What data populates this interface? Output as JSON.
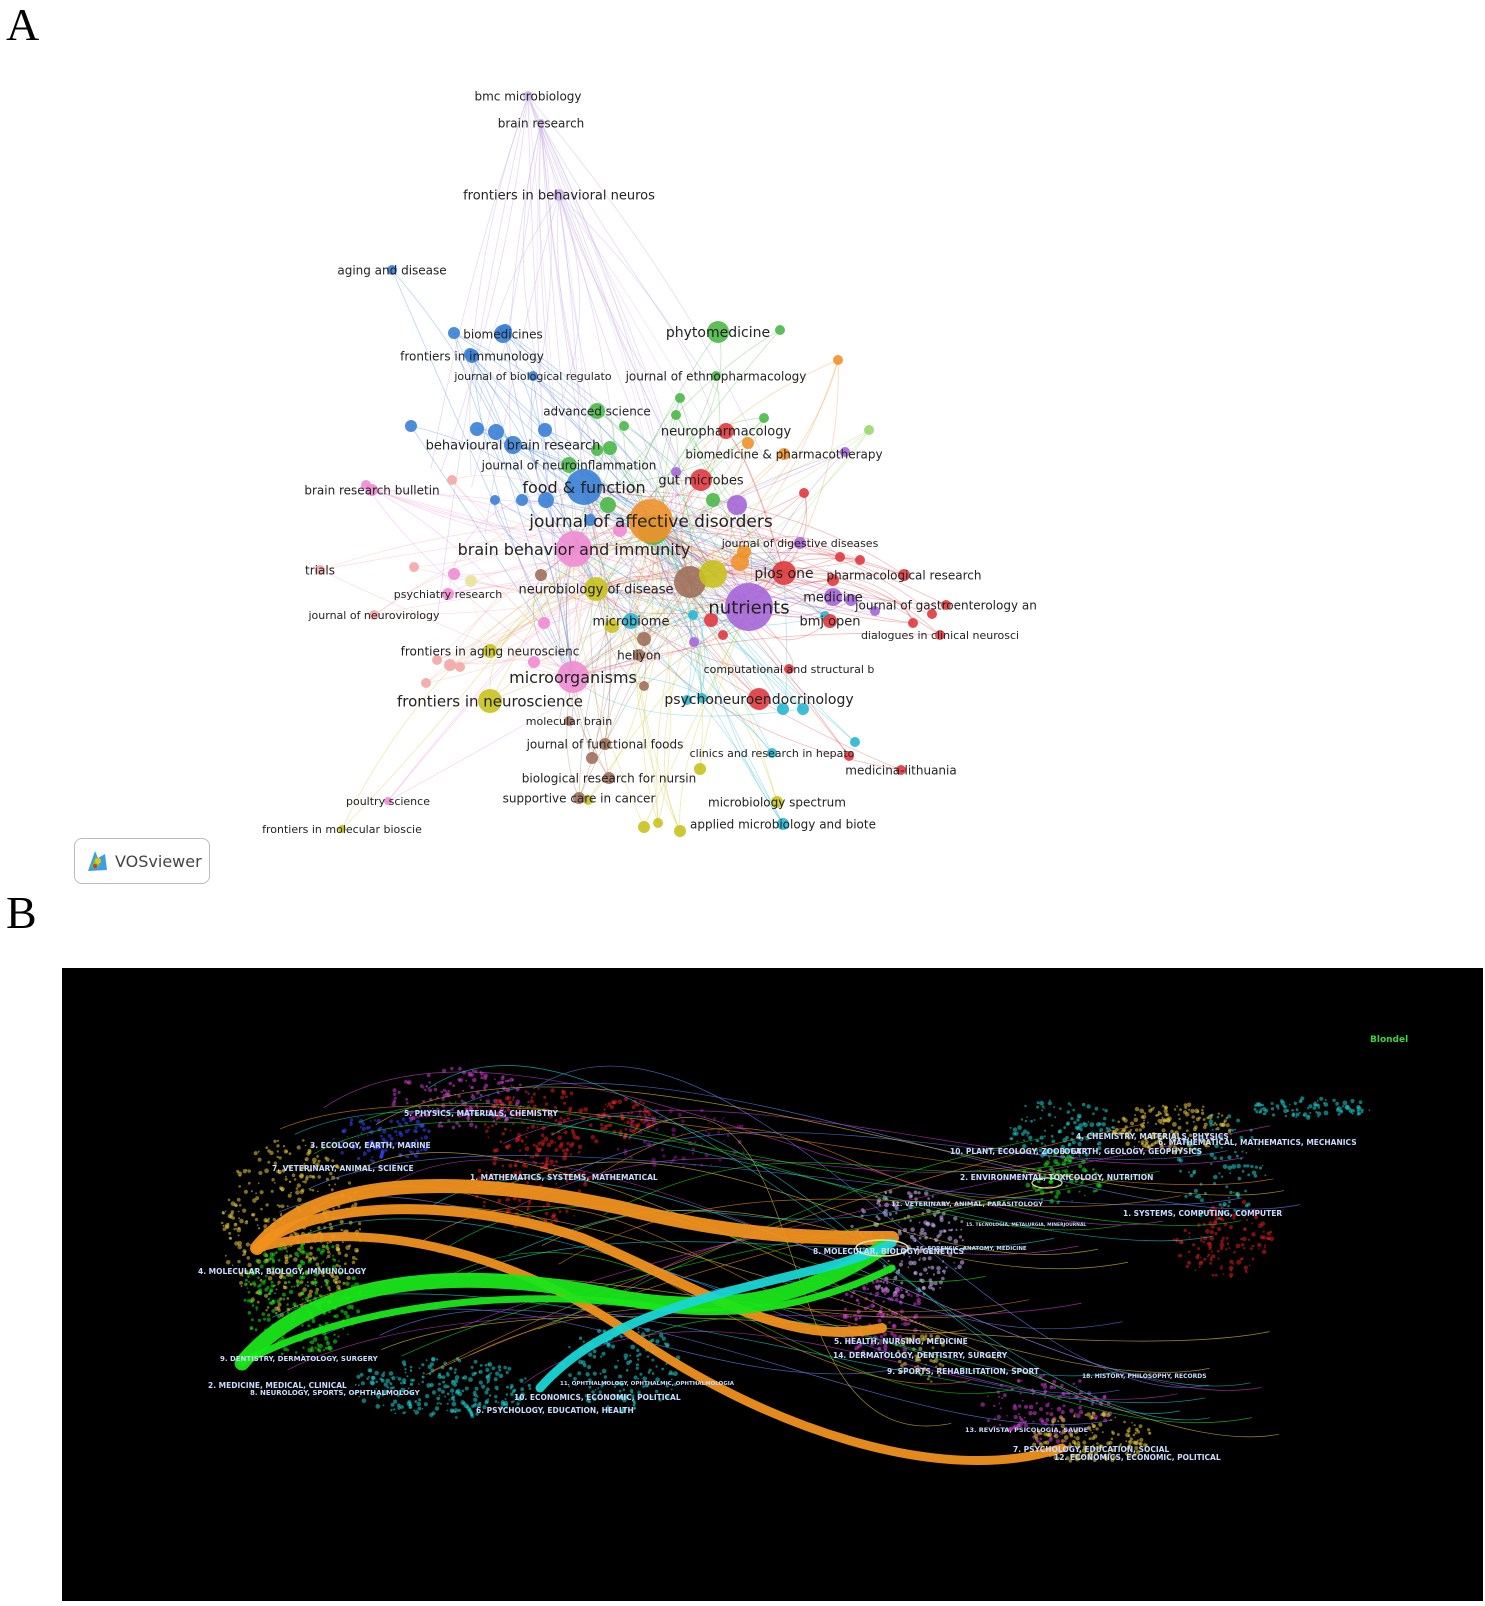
{
  "panels": {
    "a": "A",
    "b": "B"
  },
  "panel_a": {
    "badge": {
      "text": "VOSviewer",
      "icon": "vosviewer-logo-icon"
    },
    "clusters": {
      "red": "#e03a3e",
      "green": "#4cb848",
      "blue": "#3a7fd5",
      "yellow": "#c8c21e",
      "purple": "#a566d8",
      "cyan": "#29b6d2",
      "orange": "#f0912a",
      "brown": "#a0705a",
      "pink": "#f08bd3",
      "lightpink": "#f4a6a6",
      "lightgreen": "#9bd86b",
      "lavender": "#cdb6e8"
    },
    "labels": [
      "bmc microbiology",
      "brain research",
      "frontiers in behavioral neuros",
      "aging and disease",
      "biomedicines",
      "phytomedicine",
      "frontiers in immunology",
      "journal of biological regulato",
      "journal of ethnopharmacology",
      "advanced science",
      "neuropharmacology",
      "behavioural brain research",
      "biomedicine & pharmacotherapy",
      "journal of neuroinflammation",
      "brain research bulletin",
      "gut microbes",
      "food & function",
      "journal of affective disorders",
      "journal of digestive diseases",
      "brain behavior and immunity",
      "trials",
      "plos one",
      "pharmacological research",
      "neurobiology of disease",
      "psychiatry research",
      "medicine",
      "nutrients",
      "journal of gastroenterology an",
      "journal of neurovirology",
      "bmj open",
      "microbiome",
      "dialogues in clinical neurosci",
      "frontiers in aging neuroscienc",
      "heliyon",
      "computational and structural b",
      "microorganisms",
      "frontiers in neuroscience",
      "psychoneuroendocrinology",
      "molecular brain",
      "journal of functional foods",
      "clinics and research in hepato",
      "biological research for nursin",
      "medicina-lithuania",
      "supportive care in cancer",
      "poultry science",
      "microbiology spectrum",
      "applied microbiology and biote",
      "frontiers in molecular bioscie"
    ]
  },
  "panel_b": {
    "corner_label": "Blondel",
    "colors": {
      "orange": "#f0911e",
      "green": "#19e619",
      "cyan": "#19d6d6",
      "yellow": "#e8c83a",
      "magenta": "#d23ad2",
      "red": "#e21e1e",
      "label": "#c8dcff"
    },
    "left_labels": [
      "5. PHYSICS, MATERIALS, CHEMISTRY",
      "3. ECOLOGY, EARTH, MARINE",
      "7. VETERINARY, ANIMAL, SCIENCE",
      "1. MATHEMATICS, SYSTEMS, MATHEMATICAL",
      "4. MOLECULAR, BIOLOGY, IMMUNOLOGY",
      "9. DENTISTRY, DERMATOLOGY, SURGERY",
      "2. MEDICINE, MEDICAL, CLINICAL",
      "8. NEUROLOGY, SPORTS, OPHTHALMOLOGY",
      "10. ECONOMICS, ECONOMIC, POLITICAL",
      "6. PSYCHOLOGY, EDUCATION, HEALTH",
      "11. OPHTHALMOLOGY, OPHTHALMIC, OPHTHALMOLOGIA"
    ],
    "right_labels": [
      "4. CHEMISTRY, MATERIALS, PHYSICS",
      "6. MATHEMATICAL, MATHEMATICS, MECHANICS",
      "10. PLANT, ECOLOGY, ZOOLOGY",
      "3. EARTH, GEOLOGY, GEOPHYSICS",
      "2. ENVIRONMENTAL, TOXICOLOGY, NUTRITION",
      "11. VETERINARY, ANIMAL, PARASITOLOGY",
      "1. SYSTEMS, COMPUTING, COMPUTER",
      "8. MOLECULAR, BIOLOGY, GENETICS",
      "16. FORENSIC, ANATOMY, MEDICINE",
      "15. TECNOLOGIA, METALURGIA, MINERJOURNAL",
      "5. HEALTH, NURSING, MEDICINE",
      "14. DERMATOLOGY, DENTISTRY, SURGERY",
      "9. SPORTS, REHABILITATION, SPORT",
      "18. HISTORY, PHILOSOPHY, RECORDS",
      "13. REVISTA, PSICOLOGIA, SAUDE",
      "7. PSYCHOLOGY, EDUCATION, SOCIAL",
      "12. ECONOMICS, ECONOMIC, POLITICAL"
    ]
  }
}
